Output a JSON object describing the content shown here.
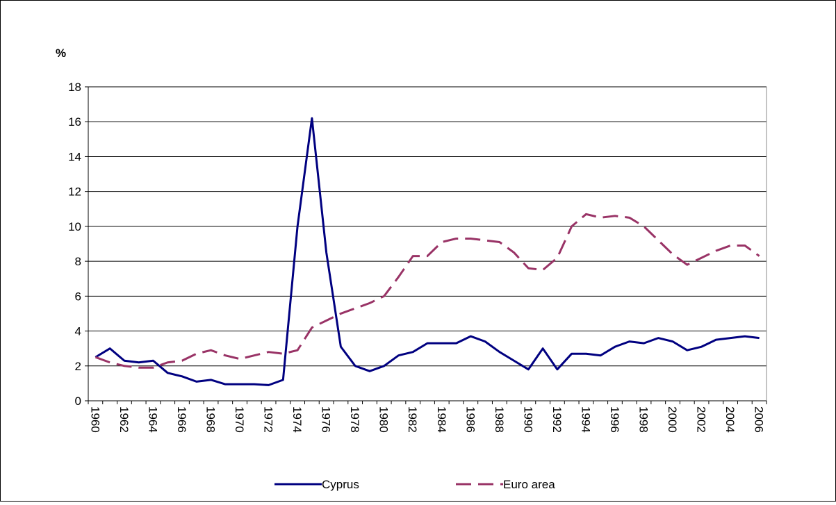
{
  "chart_data": {
    "type": "line",
    "y_label": "%",
    "categories": [
      "1960",
      null,
      "1962",
      null,
      "1964",
      null,
      "1966",
      null,
      "1968",
      null,
      "1970",
      null,
      "1972",
      null,
      "1974",
      null,
      "1976",
      null,
      "1978",
      null,
      "1980",
      null,
      "1982",
      null,
      "1984",
      null,
      "1986",
      null,
      "1988",
      null,
      "1990",
      null,
      "1992",
      null,
      "1994",
      null,
      "1996",
      null,
      "1998",
      null,
      "2000",
      null,
      "2002",
      null,
      "2004",
      null,
      "2006"
    ],
    "series": [
      {
        "name": "Cyprus",
        "color": "#000080",
        "dash": false,
        "values": [
          2.5,
          3.0,
          2.3,
          2.2,
          2.3,
          1.6,
          1.4,
          1.1,
          1.2,
          0.95,
          0.95,
          0.95,
          0.9,
          1.2,
          10.0,
          16.2,
          8.5,
          3.1,
          2.0,
          1.7,
          2.0,
          2.6,
          2.8,
          3.3,
          3.3,
          3.3,
          3.7,
          3.4,
          2.8,
          2.3,
          1.8,
          3.0,
          1.8,
          2.7,
          2.7,
          2.6,
          3.1,
          3.4,
          3.3,
          3.6,
          3.4,
          2.9,
          3.1,
          3.5,
          3.6,
          3.7,
          3.6
        ]
      },
      {
        "name": "Euro area",
        "color": "#993366",
        "dash": true,
        "values": [
          2.5,
          2.2,
          2.0,
          1.9,
          1.9,
          2.2,
          2.3,
          2.7,
          2.9,
          2.6,
          2.4,
          2.6,
          2.8,
          2.7,
          2.9,
          4.2,
          4.6,
          5.0,
          5.3,
          5.6,
          6.0,
          7.1,
          8.3,
          8.3,
          9.1,
          9.3,
          9.3,
          9.2,
          9.1,
          8.5,
          7.6,
          7.5,
          8.2,
          10.0,
          10.7,
          10.5,
          10.6,
          10.5,
          10.0,
          9.2,
          8.4,
          7.8,
          8.2,
          8.6,
          8.9,
          8.9,
          8.3
        ]
      }
    ],
    "ylim": [
      0,
      18
    ],
    "yticks": [
      0,
      2,
      4,
      6,
      8,
      10,
      12,
      14,
      16,
      18
    ],
    "grid": true,
    "legend": "bottom"
  }
}
